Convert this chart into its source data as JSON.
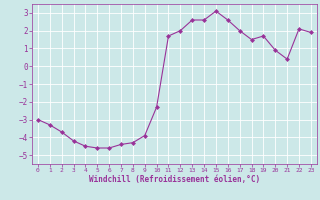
{
  "x": [
    0,
    1,
    2,
    3,
    4,
    5,
    6,
    7,
    8,
    9,
    10,
    11,
    12,
    13,
    14,
    15,
    16,
    17,
    18,
    19,
    20,
    21,
    22,
    23
  ],
  "y": [
    -3.0,
    -3.3,
    -3.7,
    -4.2,
    -4.5,
    -4.6,
    -4.6,
    -4.4,
    -4.3,
    -3.9,
    -2.3,
    1.7,
    2.0,
    2.6,
    2.6,
    3.1,
    2.6,
    2.0,
    1.5,
    1.7,
    0.9,
    0.4,
    2.1,
    1.9
  ],
  "line_color": "#993399",
  "marker": "D",
  "marker_size": 2.0,
  "bg_color": "#cce8e8",
  "grid_color": "#b0d8d8",
  "xlabel": "Windchill (Refroidissement éolien,°C)",
  "xlabel_color": "#993399",
  "tick_color": "#993399",
  "label_color": "#993399",
  "ylim": [
    -5.5,
    3.5
  ],
  "xlim": [
    -0.5,
    23.5
  ],
  "yticks": [
    -5,
    -4,
    -3,
    -2,
    -1,
    0,
    1,
    2,
    3
  ],
  "xticks": [
    0,
    1,
    2,
    3,
    4,
    5,
    6,
    7,
    8,
    9,
    10,
    11,
    12,
    13,
    14,
    15,
    16,
    17,
    18,
    19,
    20,
    21,
    22,
    23
  ]
}
